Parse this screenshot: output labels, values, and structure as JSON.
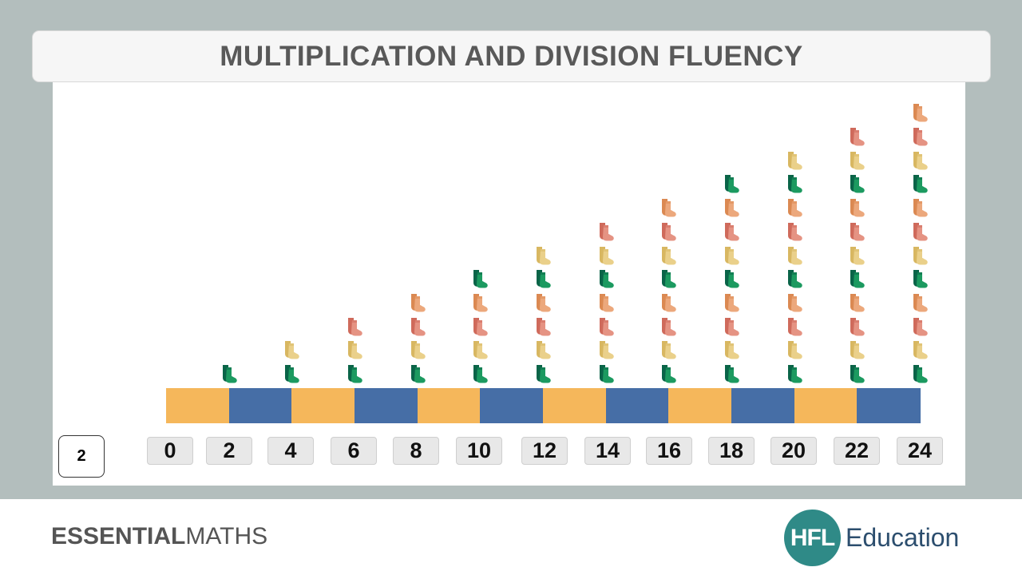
{
  "title": "MULTIPLICATION AND DIVISION FLUENCY",
  "step_value": "2",
  "number_line": [
    "0",
    "2",
    "4",
    "6",
    "8",
    "10",
    "12",
    "14",
    "16",
    "18",
    "20",
    "22",
    "24"
  ],
  "bar_colors": [
    "#f5b75b",
    "#466ea6"
  ],
  "sock_columns": [
    1,
    2,
    3,
    4,
    5,
    6,
    7,
    8,
    9,
    10,
    11,
    12
  ],
  "sock_icon": "pair-of-socks-icon",
  "sock_colors": [
    {
      "name": "green",
      "dark": "#0a6448",
      "light": "#1c9a60"
    },
    {
      "name": "yellow",
      "dark": "#d8b761",
      "light": "#ead08a"
    },
    {
      "name": "red",
      "dark": "#cf6a5b",
      "light": "#e59383"
    },
    {
      "name": "orange",
      "dark": "#db8952",
      "light": "#eca87c"
    }
  ],
  "footer": {
    "brand_bold": "ESSENTIAL",
    "brand_light": "MATHS",
    "logo_mark": "HFL",
    "logo_text": "Education"
  }
}
